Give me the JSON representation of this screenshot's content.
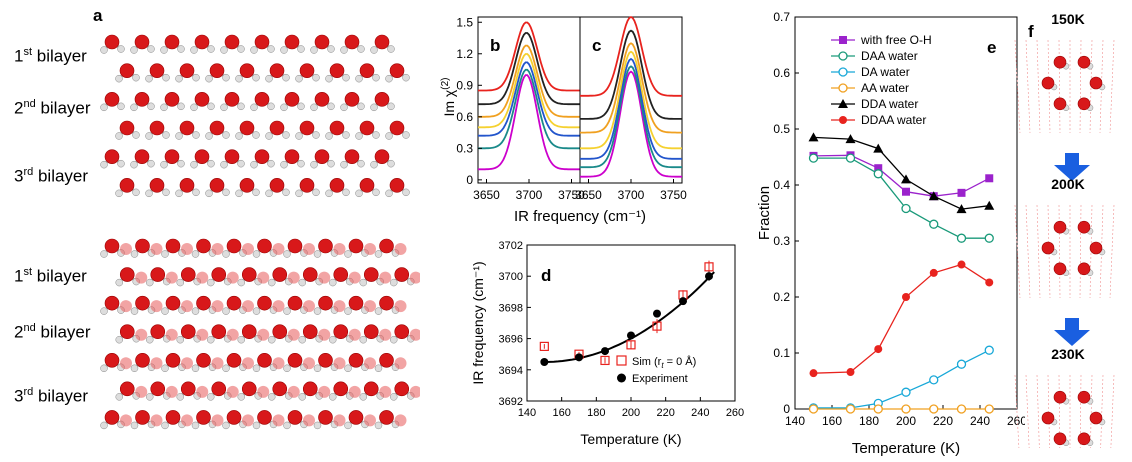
{
  "panels": {
    "a": {
      "label": "a",
      "top_rows": [
        {
          "num": "1",
          "sup": "st",
          "text": "bilayer"
        },
        {
          "num": "2",
          "sup": "nd",
          "text": "bilayer"
        },
        {
          "num": "3",
          "sup": "rd",
          "text": "bilayer"
        }
      ],
      "bottom_rows": [
        {
          "num": "1",
          "sup": "st",
          "text": "bilayer"
        },
        {
          "num": "2",
          "sup": "nd",
          "text": "bilayer"
        },
        {
          "num": "3",
          "sup": "rd",
          "text": "bilayer"
        }
      ]
    },
    "f": {
      "label": "f",
      "temps": [
        "150K",
        "200K",
        "230K"
      ]
    }
  },
  "chart_data": [
    {
      "panel": "b",
      "type": "line",
      "xlabel": "IR frequency (cm⁻¹)",
      "ylabel": "Im χ(2)",
      "ylim": [
        0,
        1.55
      ],
      "xlim": [
        3640,
        3760
      ],
      "xticks": [
        "3650",
        "3700",
        "3750"
      ],
      "yticks": [
        "0",
        "0.3",
        "0.6",
        "0.9",
        "1.2",
        "1.5"
      ],
      "center": 3697,
      "series": [
        {
          "color": "#cc00cc",
          "baseline": 0.1,
          "peak": 1.0
        },
        {
          "color": "#1a8a8a",
          "baseline": 0.3,
          "peak": 1.05
        },
        {
          "color": "#2255cc",
          "baseline": 0.42,
          "peak": 1.12
        },
        {
          "color": "#f5d130",
          "baseline": 0.5,
          "peak": 1.2
        },
        {
          "color": "#f0a020",
          "baseline": 0.6,
          "peak": 1.28
        },
        {
          "color": "#222222",
          "baseline": 0.72,
          "peak": 1.4
        },
        {
          "color": "#e8231e",
          "baseline": 0.85,
          "peak": 1.5
        }
      ]
    },
    {
      "panel": "c",
      "type": "line",
      "xlim": [
        3640,
        3760
      ],
      "xticks": [
        "3650",
        "3700",
        "3750"
      ],
      "center": 3700,
      "series": [
        {
          "color": "#cc00cc",
          "baseline": 0.03,
          "peak": 1.03
        },
        {
          "color": "#1a8a8a",
          "baseline": 0.12,
          "peak": 1.08
        },
        {
          "color": "#2255cc",
          "baseline": 0.2,
          "peak": 1.15
        },
        {
          "color": "#f5d130",
          "baseline": 0.3,
          "peak": 1.22
        },
        {
          "color": "#f0a020",
          "baseline": 0.45,
          "peak": 1.3
        },
        {
          "color": "#222222",
          "baseline": 0.58,
          "peak": 1.42
        },
        {
          "color": "#e8231e",
          "baseline": 0.8,
          "peak": 1.55
        }
      ]
    },
    {
      "panel": "d",
      "type": "scatter",
      "xlabel": "Temperature (K)",
      "ylabel": "IR frequency (cm⁻¹)",
      "xlim": [
        140,
        260
      ],
      "ylim": [
        3692,
        3702
      ],
      "xticks": [
        "140",
        "160",
        "180",
        "200",
        "220",
        "240",
        "260"
      ],
      "yticks": [
        "3692",
        "3694",
        "3696",
        "3698",
        "3700",
        "3702"
      ],
      "series": [
        {
          "name": "Sim (r",
          "name_sub": "t",
          "name_rest": " = 0 Å)",
          "color": "#e8231e",
          "marker": "square-open",
          "x": [
            150,
            170,
            185,
            200,
            215,
            230,
            245
          ],
          "y": [
            3695.5,
            3695.0,
            3694.6,
            3695.6,
            3696.8,
            3698.8,
            3700.6
          ],
          "err": [
            0.15,
            0.15,
            0.2,
            0.25,
            0.45,
            0.3,
            0.4
          ]
        },
        {
          "name": "Experiment",
          "color": "#000000",
          "marker": "circle",
          "x": [
            150,
            170,
            185,
            200,
            215,
            230,
            245
          ],
          "y": [
            3694.5,
            3694.8,
            3695.2,
            3696.2,
            3697.6,
            3698.4,
            3700.0
          ],
          "err": [
            0.1,
            0.1,
            0.1,
            0.15,
            0.15,
            0.15,
            0.3
          ]
        }
      ],
      "fit": {
        "a": 3694.5,
        "b": 0.0006,
        "c": 2.0,
        "x0": 150
      }
    },
    {
      "panel": "e",
      "type": "line",
      "xlabel": "Temperature (K)",
      "ylabel": "Fraction",
      "xlim": [
        140,
        260
      ],
      "ylim": [
        0,
        0.7
      ],
      "xticks": [
        "140",
        "160",
        "180",
        "200",
        "220",
        "240",
        "260"
      ],
      "yticks": [
        "0",
        "0.1",
        "0.2",
        "0.3",
        "0.4",
        "0.5",
        "0.6",
        "0.7"
      ],
      "x": [
        150,
        170,
        185,
        200,
        215,
        230,
        245
      ],
      "series": [
        {
          "name": "with free O-H",
          "color": "#9b22cc",
          "marker": "square",
          "values": [
            0.452,
            0.453,
            0.43,
            0.388,
            0.38,
            0.386,
            0.412
          ]
        },
        {
          "name": "DAA water",
          "color": "#1a9a7a",
          "marker": "circle-open",
          "values": [
            0.448,
            0.448,
            0.42,
            0.358,
            0.33,
            0.305,
            0.305
          ]
        },
        {
          "name": "DA water",
          "color": "#18a8d8",
          "marker": "circle-open",
          "values": [
            0.002,
            0.002,
            0.01,
            0.03,
            0.052,
            0.08,
            0.105
          ]
        },
        {
          "name": "AA water",
          "color": "#f0a020",
          "marker": "circle-open",
          "values": [
            0.0,
            0.0,
            0.0,
            0.0,
            0.0,
            0.0,
            0.0
          ]
        },
        {
          "name": "DDA water",
          "color": "#000000",
          "marker": "triangle",
          "values": [
            0.485,
            0.482,
            0.465,
            0.41,
            0.38,
            0.357,
            0.363
          ]
        },
        {
          "name": "DDAA water",
          "color": "#e8231e",
          "marker": "circle",
          "values": [
            0.064,
            0.066,
            0.107,
            0.2,
            0.243,
            0.258,
            0.226
          ]
        }
      ]
    }
  ]
}
